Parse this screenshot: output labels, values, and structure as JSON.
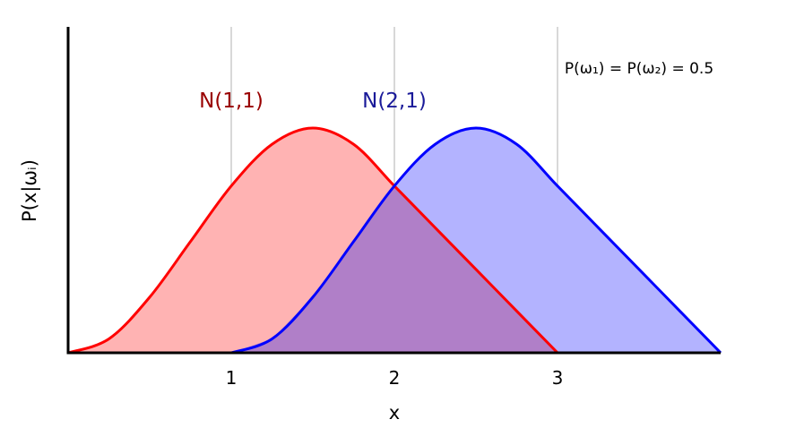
{
  "chart_data": {
    "type": "area",
    "xlabel": "x",
    "ylabel": "P(x|ωᵢ)",
    "xlim": [
      0,
      4
    ],
    "ylim": [
      0,
      1
    ],
    "x_ticks": [
      "1",
      "2",
      "3"
    ],
    "x_tick_values": [
      1,
      2,
      3
    ],
    "grid": "vertical lines at x ticks",
    "annotation": "P(ω₁) = P(ω₂) = 0.5",
    "series": [
      {
        "name": "N(1,1)",
        "color": "#ff0000",
        "fill": "#ffb3b3",
        "label_color": "#990000",
        "x": [
          0,
          0.25,
          0.5,
          0.75,
          1.0,
          1.25,
          1.5,
          1.75,
          2.0,
          2.25,
          2.5,
          2.75,
          3.0
        ],
        "y": [
          0,
          0.06,
          0.24,
          0.48,
          0.72,
          0.9,
          0.97,
          0.9,
          0.72,
          0.54,
          0.36,
          0.18,
          0
        ]
      },
      {
        "name": "N(2,1)",
        "color": "#0000ff",
        "fill": "#b3b3ff",
        "label_color": "#1a1a99",
        "x": [
          1.0,
          1.25,
          1.5,
          1.75,
          2.0,
          2.25,
          2.5,
          2.75,
          3.0,
          3.25,
          3.5,
          3.75,
          4.0
        ],
        "y": [
          0,
          0.06,
          0.24,
          0.48,
          0.72,
          0.9,
          0.97,
          0.9,
          0.72,
          0.54,
          0.36,
          0.18,
          0
        ]
      }
    ],
    "overlap_fill": "#b07fc8",
    "overlap_stroke": "#990055"
  }
}
